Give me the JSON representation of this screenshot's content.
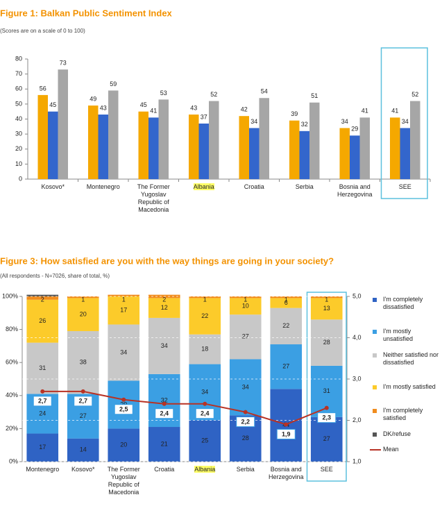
{
  "chart_data": [
    {
      "type": "bar",
      "title": "Figure 1: Balkan Public Sentiment Index",
      "subtitle": "(Scores are on a scale of 0 to 100)",
      "categories": [
        "Kosovo*",
        "Montenegro",
        "The Former Yugoslav Republic of Macedonia",
        "Albania",
        "Croatia",
        "Serbia",
        "Bosnia and Herzegovina",
        "SEE"
      ],
      "series": [
        {
          "color": "#f5a800",
          "values": [
            56,
            49,
            45,
            43,
            42,
            39,
            34,
            41
          ]
        },
        {
          "color": "#3366cc",
          "values": [
            45,
            43,
            41,
            37,
            34,
            32,
            29,
            34
          ]
        },
        {
          "color": "#a6a6a6",
          "values": [
            73,
            59,
            53,
            52,
            54,
            51,
            41,
            52
          ]
        }
      ],
      "ylim": [
        0,
        80
      ],
      "yticks": [
        0,
        10,
        20,
        30,
        40,
        50,
        60,
        70,
        80
      ],
      "highlight_category": 3,
      "boxed_category": 7
    },
    {
      "type": "stacked_bar",
      "title": "Figure 3: How satisfied are you with the way things are going in your society?",
      "subtitle": "(All respondents - N=7026, share of total, %)",
      "categories": [
        "Montenegro",
        "Kosovo*",
        "The Former Yugoslav Republic of Macedonia",
        "Croatia",
        "Albania",
        "Serbia",
        "Bosnia and Herzegovina",
        "SEE"
      ],
      "series": [
        {
          "name": "I'm completely dissatisfied",
          "color": "#2f63c4",
          "values": [
            17,
            14,
            20,
            21,
            25,
            28,
            44,
            27
          ]
        },
        {
          "name": "I'm mostly unsatisfied",
          "color": "#3b9fe3",
          "values": [
            24,
            27,
            29,
            32,
            34,
            34,
            27,
            31
          ]
        },
        {
          "name": "Neither satisfied nor dissatisfied",
          "color": "#c8c8c8",
          "values": [
            31,
            38,
            34,
            34,
            18,
            27,
            22,
            28
          ]
        },
        {
          "name": "I'm mostly satisfied",
          "color": "#fccb2a",
          "values": [
            26,
            20,
            17,
            12,
            22,
            10,
            6,
            13
          ]
        },
        {
          "name": "I'm completely satisfied",
          "color": "#f08c1e",
          "values": [
            2,
            1,
            1,
            2,
            1,
            1,
            1,
            1
          ]
        },
        {
          "name": "DK/refuse",
          "color": "#555555",
          "values": [
            1,
            0,
            0,
            0,
            0,
            0,
            0,
            0
          ],
          "show_labels": false
        },
        {
          "name": "Mean",
          "color": "#b83224",
          "type": "line",
          "axis": "y2",
          "values": [
            2.7,
            2.7,
            2.5,
            2.4,
            2.4,
            2.2,
            1.9,
            2.3
          ],
          "value_labels": [
            "2,7",
            "2,7",
            "2,5",
            "2,4",
            "2,4",
            "2,2",
            "1,9",
            "2,3"
          ]
        }
      ],
      "ylim": [
        0,
        100
      ],
      "yticks": [
        {
          "value": 0,
          "label": "0%"
        },
        {
          "value": 20,
          "label": "20%"
        },
        {
          "value": 40,
          "label": "40%"
        },
        {
          "value": 60,
          "label": "60%"
        },
        {
          "value": 80,
          "label": "80%"
        },
        {
          "value": 100,
          "label": "100%"
        }
      ],
      "y2lim": [
        1,
        5
      ],
      "y2ticks": [
        {
          "value": 1,
          "label": "1,0"
        },
        {
          "value": 2,
          "label": "2,0"
        },
        {
          "value": 3,
          "label": "3,0"
        },
        {
          "value": 4,
          "label": "4,0"
        },
        {
          "value": 5,
          "label": "5,0"
        }
      ],
      "grid": true,
      "legend": "right",
      "highlight_category": 4,
      "boxed_category": 7
    }
  ]
}
